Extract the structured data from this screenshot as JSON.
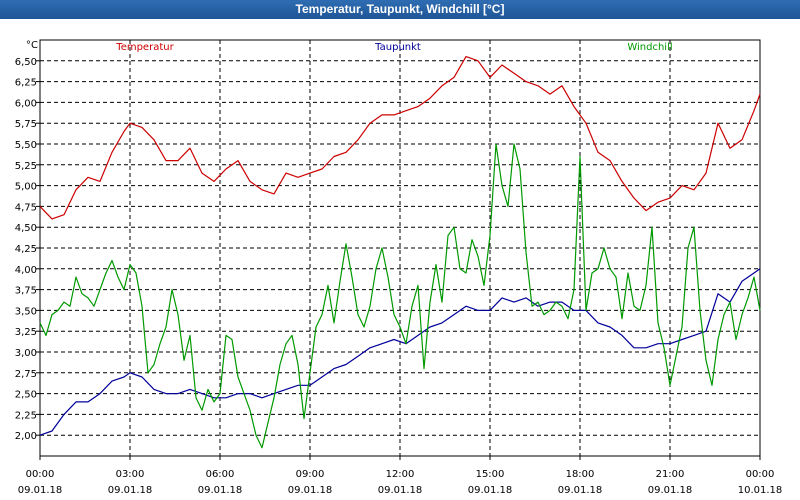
{
  "window": {
    "title": "Temperatur, Taupunkt, Windchill [°C]"
  },
  "chart_data": {
    "type": "line",
    "title": "Temperatur, Taupunkt, Windchill [°C]",
    "ylabel": "°C",
    "ylim": [
      1.75,
      6.75
    ],
    "xlim": [
      0,
      24
    ],
    "grid": true,
    "legend": "top",
    "y_ticks": [
      "2,00",
      "2,25",
      "2,50",
      "2,75",
      "3,00",
      "3,25",
      "3,50",
      "3,75",
      "4,00",
      "4,25",
      "4,50",
      "4,75",
      "5,00",
      "5,25",
      "5,50",
      "5,75",
      "6,00",
      "6,25",
      "6,50"
    ],
    "x_ticks": [
      {
        "time": "00:00",
        "date": "09.01.18"
      },
      {
        "time": "03:00",
        "date": "09.01.18"
      },
      {
        "time": "06:00",
        "date": "09.01.18"
      },
      {
        "time": "09:00",
        "date": "09.01.18"
      },
      {
        "time": "12:00",
        "date": "09.01.18"
      },
      {
        "time": "15:00",
        "date": "09.01.18"
      },
      {
        "time": "18:00",
        "date": "09.01.18"
      },
      {
        "time": "21:00",
        "date": "09.01.18"
      },
      {
        "time": "00:00",
        "date": "10.01.18"
      }
    ],
    "series": [
      {
        "name": "Temperatur",
        "color": "#cc0000",
        "x": [
          0,
          0.4,
          0.8,
          1.2,
          1.6,
          2.0,
          2.4,
          2.8,
          3.0,
          3.4,
          3.8,
          4.2,
          4.6,
          5.0,
          5.4,
          5.8,
          6.2,
          6.6,
          7.0,
          7.4,
          7.8,
          8.2,
          8.6,
          9.0,
          9.4,
          9.8,
          10.2,
          10.6,
          11.0,
          11.4,
          11.8,
          12.2,
          12.6,
          13.0,
          13.4,
          13.8,
          14.2,
          14.6,
          15.0,
          15.4,
          15.8,
          16.2,
          16.6,
          17.0,
          17.4,
          17.8,
          18.2,
          18.6,
          19.0,
          19.4,
          19.8,
          20.2,
          20.6,
          21.0,
          21.4,
          21.8,
          22.2,
          22.6,
          23.0,
          23.4,
          23.8,
          24.0
        ],
        "values": [
          4.75,
          4.6,
          4.65,
          4.95,
          5.1,
          5.05,
          5.4,
          5.65,
          5.75,
          5.7,
          5.55,
          5.3,
          5.3,
          5.45,
          5.15,
          5.05,
          5.2,
          5.3,
          5.05,
          4.95,
          4.9,
          5.15,
          5.1,
          5.15,
          5.2,
          5.35,
          5.4,
          5.55,
          5.75,
          5.85,
          5.85,
          5.9,
          5.95,
          6.05,
          6.2,
          6.3,
          6.55,
          6.5,
          6.3,
          6.45,
          6.35,
          6.25,
          6.2,
          6.1,
          6.2,
          5.95,
          5.75,
          5.4,
          5.3,
          5.05,
          4.85,
          4.7,
          4.8,
          4.85,
          5.0,
          4.95,
          5.15,
          5.75,
          5.45,
          5.55,
          5.9,
          6.1
        ]
      },
      {
        "name": "Taupunkt",
        "color": "#000099",
        "x": [
          0,
          0.4,
          0.8,
          1.2,
          1.6,
          2.0,
          2.4,
          2.8,
          3.0,
          3.4,
          3.8,
          4.2,
          4.6,
          5.0,
          5.4,
          5.8,
          6.2,
          6.6,
          7.0,
          7.4,
          7.8,
          8.2,
          8.6,
          9.0,
          9.4,
          9.8,
          10.2,
          10.6,
          11.0,
          11.4,
          11.8,
          12.2,
          12.6,
          13.0,
          13.4,
          13.8,
          14.2,
          14.6,
          15.0,
          15.4,
          15.8,
          16.2,
          16.6,
          17.0,
          17.4,
          17.8,
          18.2,
          18.6,
          19.0,
          19.4,
          19.8,
          20.2,
          20.6,
          21.0,
          21.4,
          21.8,
          22.2,
          22.6,
          23.0,
          23.4,
          23.8,
          24.0
        ],
        "values": [
          2.0,
          2.05,
          2.25,
          2.4,
          2.4,
          2.5,
          2.65,
          2.7,
          2.75,
          2.7,
          2.55,
          2.5,
          2.5,
          2.55,
          2.5,
          2.45,
          2.45,
          2.5,
          2.5,
          2.45,
          2.5,
          2.55,
          2.6,
          2.6,
          2.7,
          2.8,
          2.85,
          2.95,
          3.05,
          3.1,
          3.15,
          3.1,
          3.2,
          3.3,
          3.35,
          3.45,
          3.55,
          3.5,
          3.5,
          3.65,
          3.6,
          3.65,
          3.55,
          3.6,
          3.6,
          3.5,
          3.5,
          3.35,
          3.3,
          3.2,
          3.05,
          3.05,
          3.1,
          3.1,
          3.15,
          3.2,
          3.25,
          3.7,
          3.6,
          3.85,
          3.95,
          4.0
        ]
      },
      {
        "name": "Windchill",
        "color": "#009900",
        "x": [
          0,
          0.2,
          0.4,
          0.6,
          0.8,
          1.0,
          1.2,
          1.4,
          1.6,
          1.8,
          2.0,
          2.2,
          2.4,
          2.6,
          2.8,
          3.0,
          3.2,
          3.4,
          3.6,
          3.8,
          4.0,
          4.2,
          4.4,
          4.6,
          4.8,
          5.0,
          5.2,
          5.4,
          5.6,
          5.8,
          6.0,
          6.2,
          6.4,
          6.6,
          6.8,
          7.0,
          7.2,
          7.4,
          7.6,
          7.8,
          8.0,
          8.2,
          8.4,
          8.6,
          8.8,
          9.0,
          9.2,
          9.4,
          9.6,
          9.8,
          10.0,
          10.2,
          10.4,
          10.6,
          10.8,
          11.0,
          11.2,
          11.4,
          11.6,
          11.8,
          12.0,
          12.2,
          12.4,
          12.6,
          12.8,
          13.0,
          13.2,
          13.4,
          13.6,
          13.8,
          14.0,
          14.2,
          14.4,
          14.6,
          14.8,
          15.0,
          15.2,
          15.4,
          15.6,
          15.8,
          16.0,
          16.2,
          16.4,
          16.6,
          16.8,
          17.0,
          17.2,
          17.4,
          17.6,
          17.8,
          18.0,
          18.2,
          18.4,
          18.6,
          18.8,
          19.0,
          19.2,
          19.4,
          19.6,
          19.8,
          20.0,
          20.2,
          20.4,
          20.6,
          20.8,
          21.0,
          21.2,
          21.4,
          21.6,
          21.8,
          22.0,
          22.2,
          22.4,
          22.6,
          22.8,
          23.0,
          23.2,
          23.4,
          23.6,
          23.8,
          24.0
        ],
        "values": [
          3.35,
          3.2,
          3.45,
          3.5,
          3.6,
          3.55,
          3.9,
          3.7,
          3.65,
          3.55,
          3.75,
          3.95,
          4.1,
          3.9,
          3.75,
          4.05,
          3.95,
          3.55,
          2.75,
          2.85,
          3.1,
          3.3,
          3.75,
          3.45,
          2.9,
          3.2,
          2.45,
          2.3,
          2.55,
          2.4,
          2.5,
          3.2,
          3.15,
          2.7,
          2.5,
          2.3,
          2.0,
          1.85,
          2.15,
          2.45,
          2.85,
          3.1,
          3.2,
          2.85,
          2.2,
          2.75,
          3.3,
          3.45,
          3.8,
          3.35,
          3.85,
          4.3,
          3.9,
          3.45,
          3.3,
          3.55,
          4.0,
          4.25,
          3.9,
          3.45,
          3.3,
          3.1,
          3.55,
          3.8,
          2.8,
          3.6,
          4.05,
          3.6,
          4.4,
          4.5,
          4.0,
          3.95,
          4.35,
          4.15,
          3.8,
          4.4,
          5.5,
          5.0,
          4.75,
          5.5,
          5.2,
          4.2,
          3.55,
          3.6,
          3.45,
          3.5,
          3.6,
          3.55,
          3.4,
          3.75,
          5.35,
          3.5,
          3.95,
          4.0,
          4.25,
          4.0,
          3.9,
          3.4,
          3.95,
          3.55,
          3.5,
          3.8,
          4.5,
          3.35,
          3.05,
          2.6,
          2.95,
          3.3,
          4.25,
          4.5,
          3.5,
          2.9,
          2.6,
          3.15,
          3.45,
          3.6,
          3.15,
          3.45,
          3.65,
          3.9,
          3.5
        ]
      }
    ]
  }
}
